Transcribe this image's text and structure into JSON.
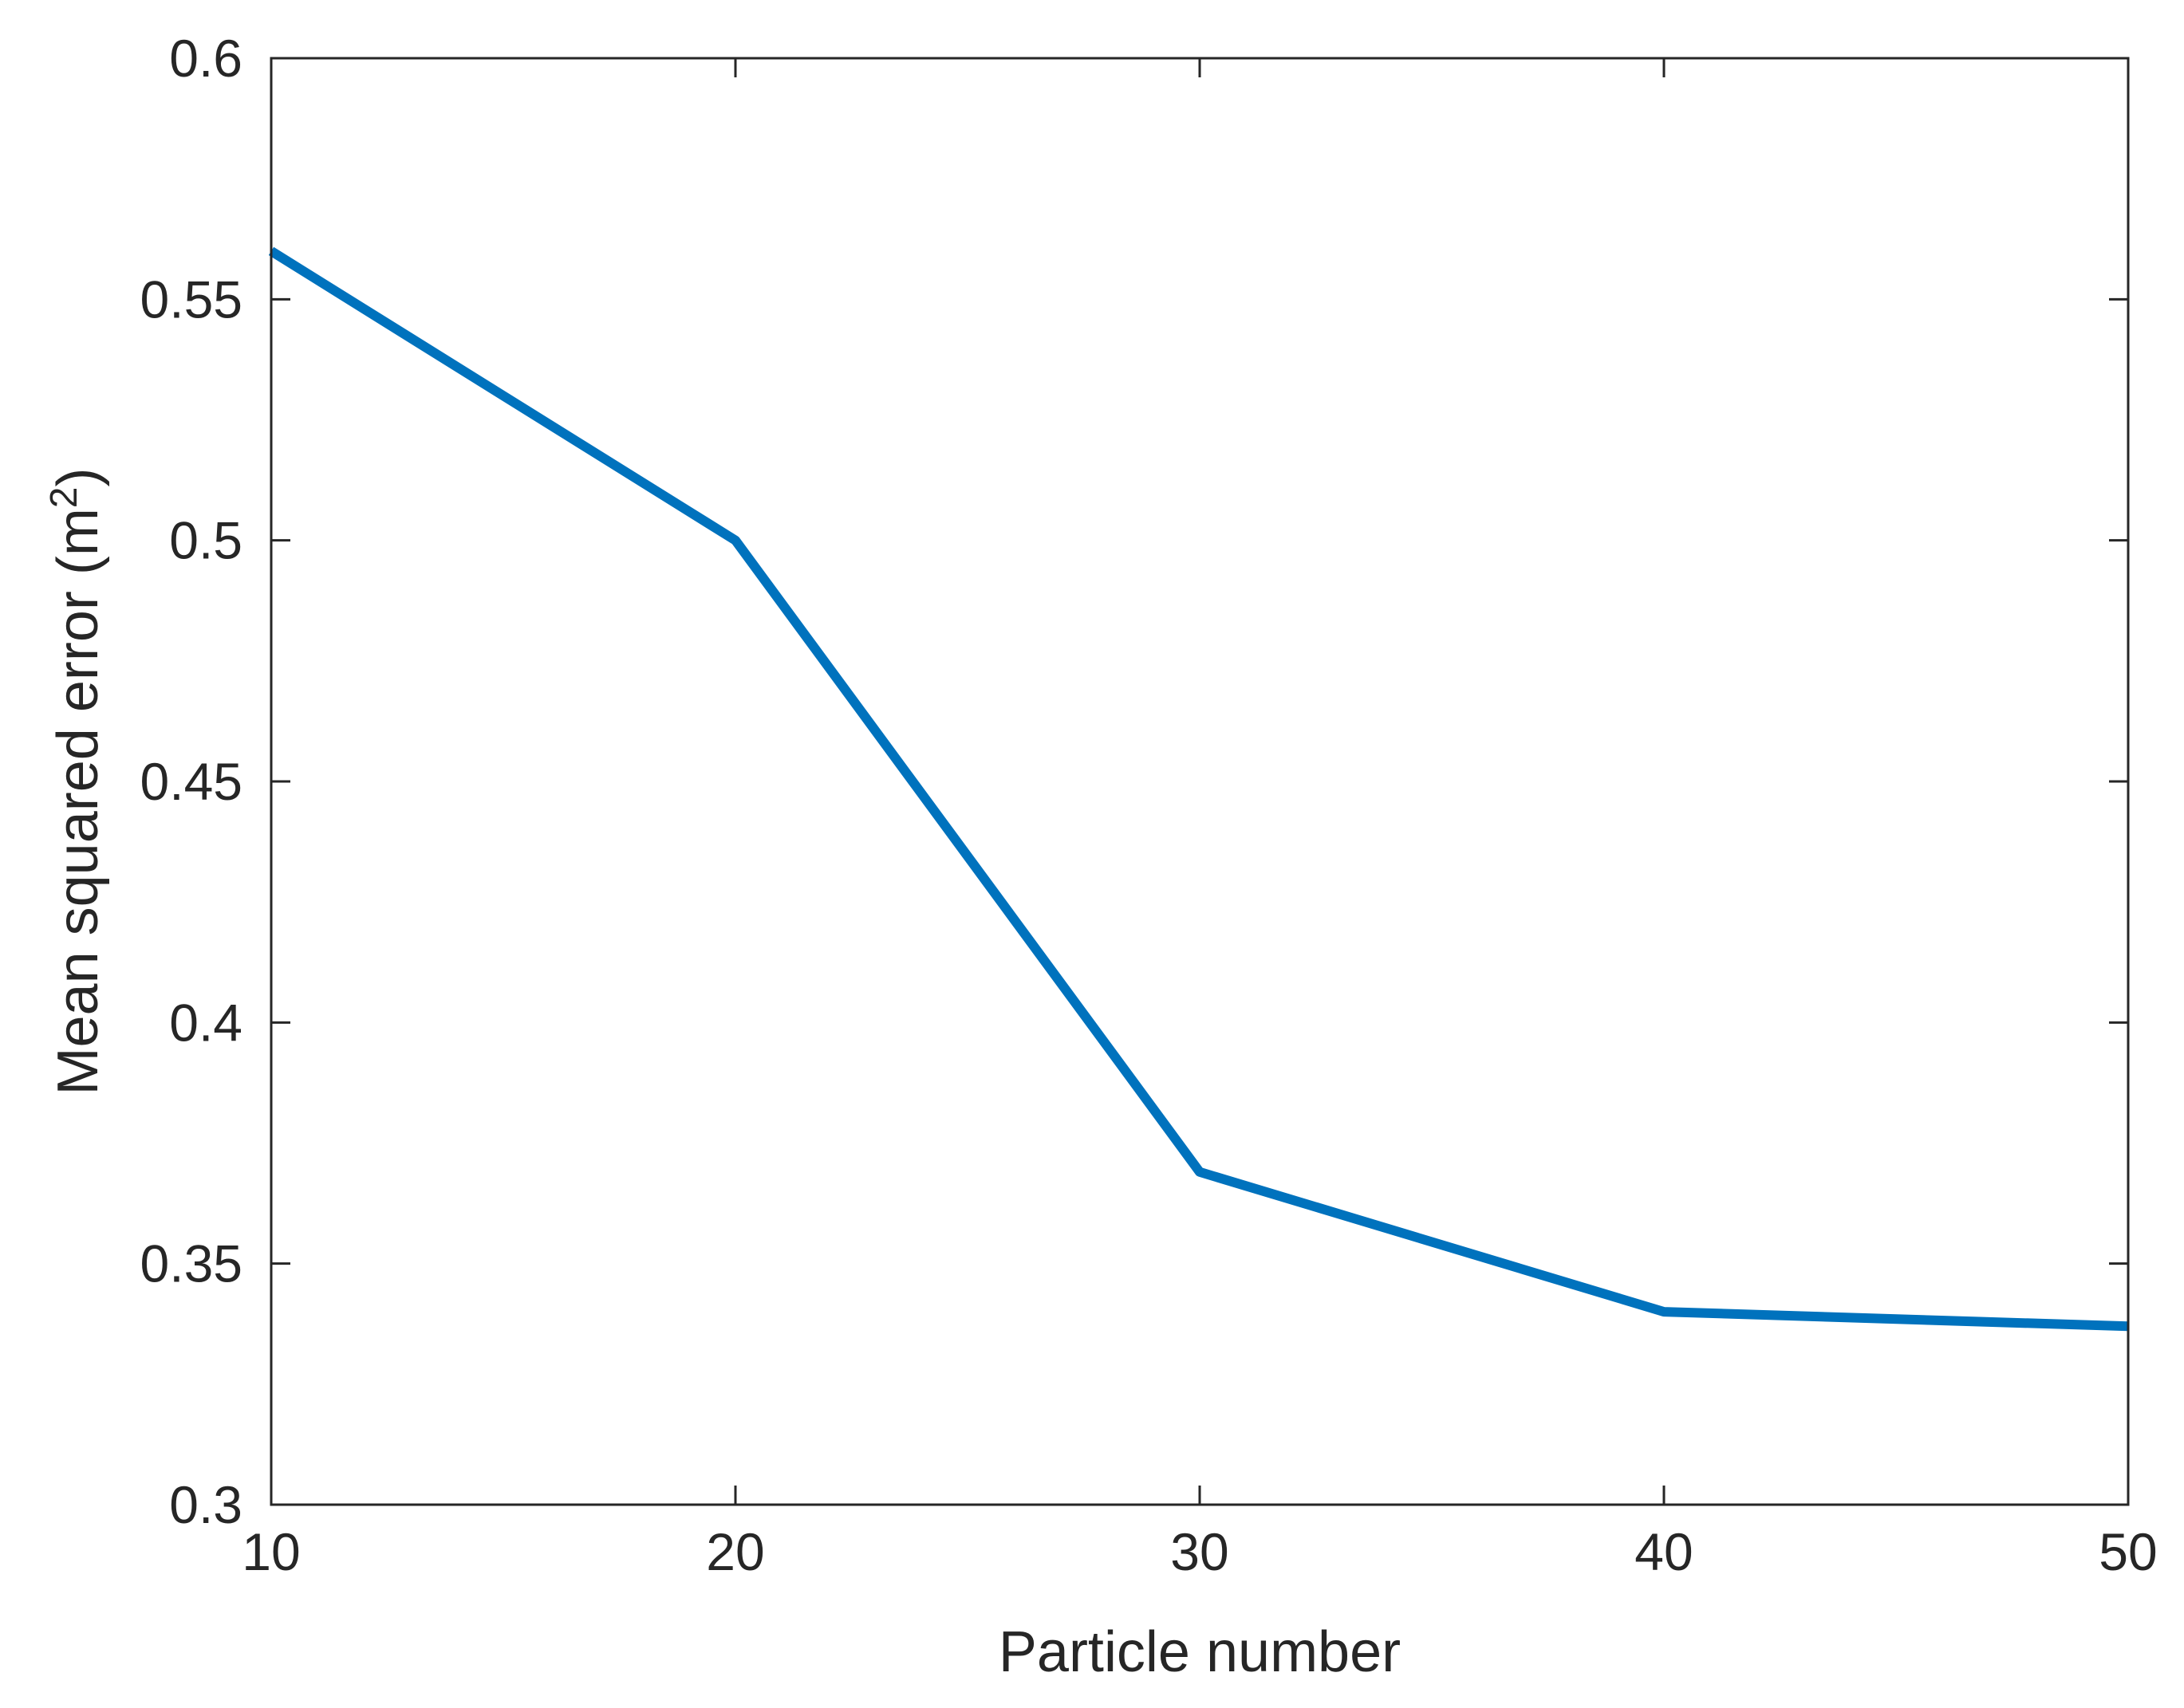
{
  "chart_data": {
    "type": "line",
    "title": "",
    "xlabel": "Particle number",
    "ylabel_main": "Mean squared error (m",
    "ylabel_sup": "2",
    "ylabel_close": ")",
    "xlim": [
      10,
      50
    ],
    "ylim": [
      0.3,
      0.6
    ],
    "xticks": [
      10,
      20,
      30,
      40,
      50
    ],
    "xtick_labels": [
      "10",
      "20",
      "30",
      "40",
      "50"
    ],
    "yticks": [
      0.3,
      0.35,
      0.4,
      0.45,
      0.5,
      0.55,
      0.6
    ],
    "ytick_labels": [
      "0.3",
      "0.35",
      "0.4",
      "0.45",
      "0.5",
      "0.55",
      "0.6"
    ],
    "grid": false,
    "series": [
      {
        "color": "#0072bd",
        "x": [
          10,
          20,
          30,
          40,
          50
        ],
        "y": [
          0.56,
          0.5,
          0.369,
          0.34,
          0.337
        ]
      }
    ]
  }
}
